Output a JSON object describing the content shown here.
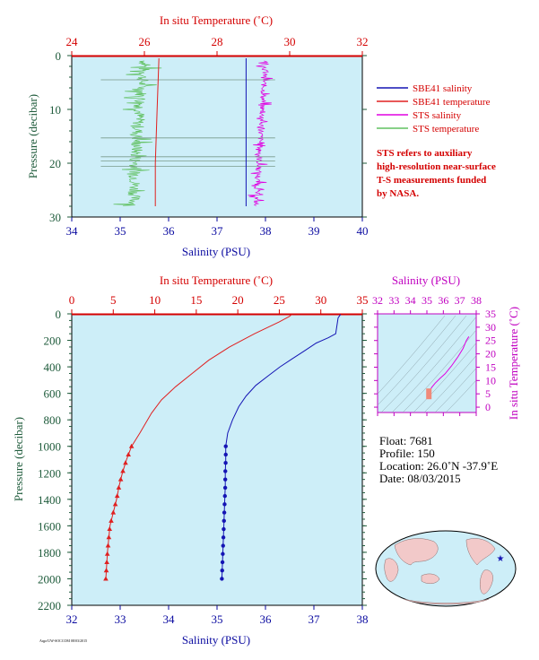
{
  "colors": {
    "plot_bg": "#cdeef8",
    "sbe_salinity": "#1414b4",
    "sbe_temperature": "#e02020",
    "sts_salinity": "#e000e0",
    "sts_temperature": "#60c060",
    "axis_red": "#d40000",
    "axis_green": "#1d5a3a",
    "axis_blue": "#0a0aa0",
    "axis_magenta": "#c000c0"
  },
  "top_panel": {
    "top_axis_title": "In situ Temperature (˚C)",
    "bottom_axis_title": "Salinity (PSU)",
    "left_axis_title": "Pressure (decibar)",
    "temp_ticks": [
      "24",
      "26",
      "28",
      "30",
      "32"
    ],
    "sal_ticks": [
      "34",
      "35",
      "36",
      "37",
      "38",
      "39",
      "40"
    ],
    "pres_ticks": [
      "0",
      "10",
      "20",
      "30"
    ]
  },
  "legend": {
    "items": [
      {
        "label": "SBE41 salinity",
        "color": "#1414b4"
      },
      {
        "label": "SBE41 temperature",
        "color": "#e02020"
      },
      {
        "label": "STS salinity",
        "color": "#e000e0"
      },
      {
        "label": "STS temperature",
        "color": "#60c060"
      }
    ],
    "note_lines": [
      "STS refers to auxiliary",
      "high-resolution near-surface",
      "T-S measurements funded",
      "by NASA."
    ]
  },
  "bottom_panel": {
    "top_axis_title": "In situ Temperature (˚C)",
    "bottom_axis_title": "Salinity (PSU)",
    "left_axis_title": "Pressure (decibar)",
    "temp_ticks": [
      "0",
      "5",
      "10",
      "15",
      "20",
      "25",
      "30",
      "35"
    ],
    "sal_ticks": [
      "32",
      "33",
      "34",
      "35",
      "36",
      "37",
      "38"
    ],
    "pres_ticks": [
      "0",
      "200",
      "400",
      "600",
      "800",
      "1000",
      "1200",
      "1400",
      "1600",
      "1800",
      "2000",
      "2200"
    ]
  },
  "ts_panel": {
    "top_axis_title": "Salinity (PSU)",
    "right_axis_title": "In situ Temperature (˚C)",
    "sal_ticks": [
      "32",
      "33",
      "34",
      "35",
      "36",
      "37",
      "38"
    ],
    "temp_ticks": [
      "0",
      "5",
      "10",
      "15",
      "20",
      "25",
      "30",
      "35"
    ]
  },
  "float_info": {
    "float_line": "Float:  7681",
    "profile_line": "Profile:  150",
    "location_line": "Location:  26.0˚N  -37.9˚E",
    "date_line": "Date:  08/03/2015"
  },
  "credit": "Argo/UW-SOCCOM 08/03/2015",
  "chart_data": [
    {
      "type": "line",
      "panel": "near-surface detail",
      "xlabel": "Salinity (PSU)",
      "x2label": "In situ Temperature (˚C)",
      "ylabel": "Pressure (decibar)",
      "xlim": [
        34,
        40
      ],
      "x2lim": [
        24,
        32
      ],
      "ylim": [
        30,
        0
      ],
      "series": [
        {
          "name": "SBE41 salinity",
          "axis": "salinity",
          "x": [
            37.6,
            37.6,
            37.6
          ],
          "y": [
            0.5,
            15,
            28
          ]
        },
        {
          "name": "SBE41 temperature",
          "axis": "temperature",
          "x": [
            26.4,
            26.35,
            26.3,
            26.3
          ],
          "y": [
            0.5,
            10,
            20,
            28
          ]
        },
        {
          "name": "STS salinity",
          "axis": "salinity",
          "x": [
            38.0,
            37.95,
            37.9,
            37.85,
            37.8
          ],
          "y": [
            1,
            8,
            15,
            22,
            28
          ]
        },
        {
          "name": "STS temperature",
          "axis": "temperature",
          "x": [
            26.0,
            25.9,
            25.8,
            25.75,
            25.7
          ],
          "y": [
            1,
            8,
            15,
            22,
            28
          ]
        }
      ]
    },
    {
      "type": "line",
      "panel": "full profile",
      "xlabel": "Salinity (PSU)",
      "x2label": "In situ Temperature (˚C)",
      "ylabel": "Pressure (decibar)",
      "xlim": [
        32,
        38
      ],
      "x2lim": [
        0,
        35
      ],
      "ylim": [
        2200,
        0
      ],
      "series": [
        {
          "name": "SBE41 salinity",
          "axis": "salinity",
          "x": [
            37.55,
            37.5,
            37.45,
            37.3,
            37.05,
            36.8,
            36.55,
            36.3,
            36.05,
            35.8,
            35.6,
            35.45,
            35.32,
            35.22,
            35.18,
            35.18,
            35.17,
            35.17,
            35.16,
            35.15,
            35.14,
            35.12,
            35.1
          ],
          "y": [
            5,
            30,
            150,
            180,
            220,
            280,
            340,
            400,
            470,
            540,
            620,
            700,
            800,
            900,
            1000,
            1100,
            1200,
            1300,
            1400,
            1500,
            1600,
            1800,
            2000
          ]
        },
        {
          "name": "SBE41 temperature",
          "axis": "temperature",
          "x": [
            26.5,
            26.2,
            25.0,
            22.0,
            19.0,
            16.5,
            14.5,
            12.5,
            10.8,
            9.6,
            8.2,
            7.2,
            6.6,
            6.1,
            5.7,
            5.4,
            5.0,
            4.6,
            4.3,
            4.1
          ],
          "y": [
            5,
            20,
            60,
            150,
            250,
            350,
            450,
            550,
            650,
            750,
            900,
            1000,
            1100,
            1200,
            1300,
            1400,
            1500,
            1600,
            1800,
            2000
          ]
        }
      ]
    },
    {
      "type": "line",
      "panel": "T-S diagram",
      "xlabel": "Salinity (PSU)",
      "ylabel": "In situ Temperature (˚C)",
      "xlim": [
        32,
        38
      ],
      "ylim": [
        -2,
        35
      ],
      "series": [
        {
          "axis": "ts",
          "x": [
            37.55,
            37.4,
            37.2,
            36.9,
            36.5,
            36.1,
            35.8,
            35.5,
            35.3,
            35.2,
            35.15,
            35.12
          ],
          "y": [
            26.5,
            25.0,
            22.0,
            19.0,
            15.5,
            12.5,
            10.8,
            9.0,
            7.5,
            6.5,
            5.5,
            4.2
          ]
        }
      ]
    }
  ]
}
